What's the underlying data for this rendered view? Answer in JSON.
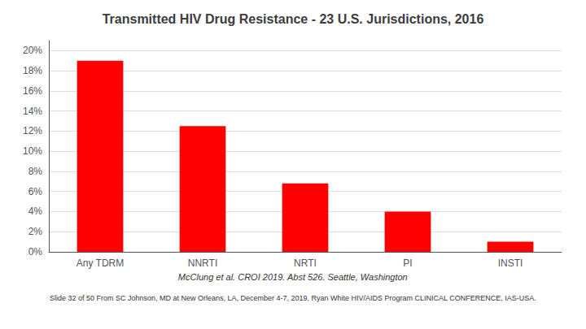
{
  "chart_data": {
    "type": "bar",
    "title": "Transmitted HIV Drug Resistance - 23 U.S. Jurisdictions, 2016",
    "categories": [
      "Any TDRM",
      "NNRTI",
      "NRTI",
      "PI",
      "INSTI"
    ],
    "values": [
      0.19,
      0.125,
      0.068,
      0.04,
      0.01
    ],
    "color": "#FF0000",
    "ylim": [
      0,
      0.21
    ],
    "yticks": [
      {
        "value": 0,
        "label": "0%"
      },
      {
        "value": 0.02,
        "label": "2%"
      },
      {
        "value": 0.04,
        "label": "4%"
      },
      {
        "value": 0.06,
        "label": "6%"
      },
      {
        "value": 0.08,
        "label": "8%"
      },
      {
        "value": 0.1,
        "label": "10%"
      },
      {
        "value": 0.12,
        "label": "12%"
      },
      {
        "value": 0.14,
        "label": "14%"
      },
      {
        "value": 0.16,
        "label": "16%"
      },
      {
        "value": 0.18,
        "label": "18%"
      },
      {
        "value": 0.2,
        "label": "20%"
      }
    ],
    "grid": true,
    "annotations": [
      "McClung et al. CROI 2019. Abst 526. Seattle, Washington",
      "Slide 32 of 50 From SC Johnson, MD at New Orleans, LA, December 4-7, 2019, Ryan White HIV/AIDS Program CLINICAL CONFERENCE, IAS-USA."
    ]
  }
}
